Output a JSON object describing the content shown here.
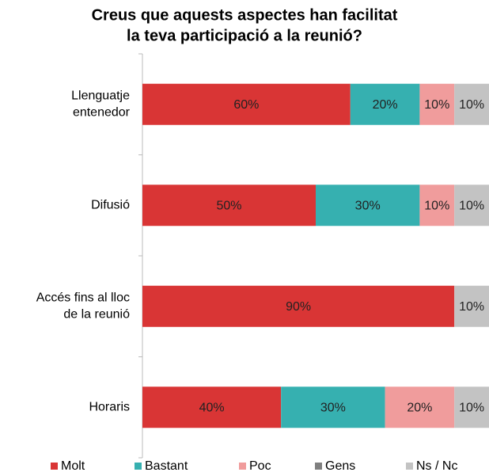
{
  "chart_data": {
    "type": "stacked-barh",
    "title": [
      "Creus que aquests aspectes han facilitat",
      "la teva participació a la reunió?"
    ],
    "categories": [
      [
        "Llenguatje",
        "entenedor"
      ],
      [
        "Difusió"
      ],
      [
        "Accés fins al lloc",
        "de la reunió"
      ],
      [
        "Horaris"
      ]
    ],
    "xlim": [
      0,
      100
    ],
    "series": [
      {
        "name": "Molt",
        "color": "#d93535",
        "values": [
          60,
          50,
          90,
          40
        ],
        "value_labels": [
          "60%",
          "50%",
          "90%",
          "40%"
        ]
      },
      {
        "name": "Bastant",
        "color": "#36b0b0",
        "values": [
          20,
          30,
          0,
          30
        ],
        "value_labels": [
          "20%",
          "30%",
          null,
          "30%"
        ]
      },
      {
        "name": "Poc",
        "color": "#f09c9c",
        "values": [
          10,
          10,
          0,
          20
        ],
        "value_labels": [
          "10%",
          "10%",
          null,
          "20%"
        ]
      },
      {
        "name": "Gens",
        "color": "#7f7f7f",
        "values": [
          0,
          0,
          0,
          0
        ],
        "value_labels": [
          null,
          null,
          null,
          null
        ]
      },
      {
        "name": "Ns / Nc",
        "color": "#c3c3c3",
        "values": [
          10,
          10,
          10,
          10
        ],
        "value_labels": [
          "10%",
          "10%",
          "10%",
          "10%"
        ]
      }
    ]
  }
}
